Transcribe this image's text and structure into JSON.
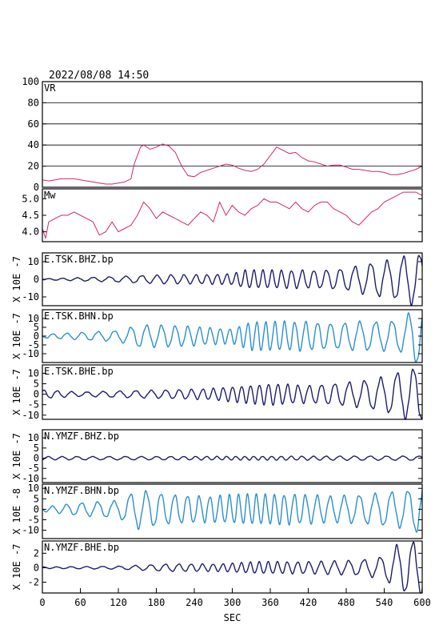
{
  "header": {
    "timestamp": "2022/08/08  14:50"
  },
  "chart_data": {
    "type": "line",
    "x_axis": {
      "label": "SEC",
      "ticks": [
        0,
        60,
        120,
        180,
        240,
        300,
        360,
        420,
        480,
        540,
        600
      ],
      "xlim": [
        0,
        600
      ]
    },
    "colors": {
      "vr": "#d6285a",
      "mw": "#d6285a",
      "dark": "#1c1c6e",
      "light": "#2a8fd0"
    },
    "panels": [
      {
        "id": "vr",
        "title": "VR",
        "ylim": [
          0,
          100
        ],
        "yticks": [
          "100",
          "80",
          "60",
          "40",
          "20",
          "0"
        ],
        "ytick_values": [
          100,
          80,
          60,
          40,
          20,
          0
        ],
        "grid": true,
        "color": "vr",
        "x": [
          0,
          10,
          20,
          30,
          40,
          50,
          60,
          70,
          80,
          90,
          100,
          110,
          120,
          130,
          140,
          145,
          150,
          155,
          160,
          170,
          180,
          190,
          200,
          210,
          220,
          230,
          240,
          250,
          260,
          270,
          280,
          290,
          300,
          310,
          320,
          330,
          340,
          350,
          360,
          370,
          380,
          390,
          400,
          410,
          420,
          430,
          440,
          450,
          460,
          470,
          480,
          490,
          500,
          510,
          520,
          530,
          540,
          550,
          560,
          570,
          580,
          590,
          600
        ],
        "y": [
          7,
          6,
          7,
          8,
          8,
          8,
          7,
          6,
          5,
          4,
          3,
          3,
          4,
          5,
          8,
          22,
          30,
          38,
          40,
          36,
          38,
          41,
          39,
          33,
          20,
          11,
          10,
          14,
          16,
          18,
          20,
          22,
          21,
          18,
          16,
          15,
          17,
          22,
          30,
          38,
          35,
          32,
          33,
          28,
          25,
          24,
          22,
          20,
          21,
          21,
          19,
          17,
          17,
          16,
          15,
          15,
          14,
          12,
          12,
          13,
          15,
          17,
          20
        ]
      },
      {
        "id": "mw",
        "title": "Mw",
        "ylim": [
          3.7,
          5.3
        ],
        "yticks": [
          "5.0",
          "4.5",
          "4.0"
        ],
        "ytick_values": [
          5.0,
          4.5,
          4.0
        ],
        "grid": false,
        "color": "mw",
        "x": [
          0,
          5,
          10,
          20,
          30,
          40,
          50,
          60,
          70,
          80,
          90,
          100,
          110,
          120,
          130,
          140,
          150,
          160,
          170,
          180,
          190,
          200,
          210,
          220,
          230,
          240,
          250,
          260,
          270,
          280,
          290,
          300,
          310,
          320,
          330,
          340,
          350,
          360,
          370,
          380,
          390,
          400,
          410,
          420,
          430,
          440,
          450,
          460,
          470,
          480,
          490,
          500,
          510,
          520,
          530,
          540,
          550,
          560,
          570,
          580,
          590,
          600
        ],
        "y": [
          4.1,
          3.8,
          4.3,
          4.4,
          4.5,
          4.5,
          4.6,
          4.5,
          4.4,
          4.3,
          3.9,
          4.0,
          4.3,
          4.0,
          4.1,
          4.2,
          4.5,
          4.9,
          4.7,
          4.4,
          4.6,
          4.5,
          4.4,
          4.3,
          4.2,
          4.4,
          4.6,
          4.5,
          4.3,
          4.9,
          4.5,
          4.8,
          4.6,
          4.5,
          4.7,
          4.8,
          5.0,
          4.9,
          4.9,
          4.8,
          4.7,
          4.9,
          4.7,
          4.6,
          4.8,
          4.9,
          4.9,
          4.7,
          4.6,
          4.5,
          4.3,
          4.2,
          4.4,
          4.6,
          4.7,
          4.9,
          5.0,
          5.1,
          5.2,
          5.2,
          5.2,
          5.1
        ]
      },
      {
        "id": "tsk-bhz",
        "title": "E.TSK.BHZ.bp",
        "ylabel": "X 10E -7",
        "ylim": [
          -15,
          15
        ],
        "yticks": [
          "10",
          "0",
          "-10"
        ],
        "ytick_values": [
          10,
          0,
          -10
        ],
        "color": "dark",
        "envelope": [
          [
            0,
            0.3
          ],
          [
            120,
            1.5
          ],
          [
            150,
            2
          ],
          [
            200,
            2.5
          ],
          [
            250,
            2.5
          ],
          [
            300,
            3
          ],
          [
            320,
            5
          ],
          [
            360,
            5
          ],
          [
            400,
            5
          ],
          [
            440,
            5
          ],
          [
            480,
            6
          ],
          [
            520,
            9
          ],
          [
            560,
            11
          ],
          [
            580,
            14
          ],
          [
            600,
            14
          ]
        ]
      },
      {
        "id": "tsk-bhn",
        "title": "E.TSK.BHN.bp",
        "ylabel": "X 10E -7",
        "ylim": [
          -15,
          15
        ],
        "yticks": [
          "10",
          "5",
          "0",
          "-5",
          "-10"
        ],
        "ytick_values": [
          10,
          5,
          0,
          -5,
          -10
        ],
        "color": "light",
        "envelope": [
          [
            0,
            1
          ],
          [
            60,
            2
          ],
          [
            120,
            3
          ],
          [
            150,
            6
          ],
          [
            200,
            6
          ],
          [
            250,
            5
          ],
          [
            300,
            4
          ],
          [
            330,
            8
          ],
          [
            360,
            8
          ],
          [
            420,
            8
          ],
          [
            460,
            7
          ],
          [
            500,
            8
          ],
          [
            540,
            8
          ],
          [
            570,
            9
          ],
          [
            585,
            15
          ],
          [
            600,
            15
          ]
        ]
      },
      {
        "id": "tsk-bhe",
        "title": "E.TSK.BHE.bp",
        "ylabel": "X 10E -7",
        "ylim": [
          -12,
          14
        ],
        "yticks": [
          "10",
          "5",
          "0",
          "-5",
          "-10"
        ],
        "ytick_values": [
          10,
          5,
          0,
          -5,
          -10
        ],
        "color": "dark",
        "envelope": [
          [
            0,
            2
          ],
          [
            60,
            1
          ],
          [
            120,
            1.5
          ],
          [
            200,
            2
          ],
          [
            260,
            2.5
          ],
          [
            320,
            4
          ],
          [
            360,
            5
          ],
          [
            420,
            4
          ],
          [
            460,
            5
          ],
          [
            500,
            6
          ],
          [
            540,
            8
          ],
          [
            570,
            11
          ],
          [
            585,
            12
          ],
          [
            600,
            12
          ]
        ]
      },
      {
        "id": "ymzf-bhz",
        "title": "N.YMZF.BHZ.bp",
        "ylabel": "X 10E -7",
        "ylim": [
          -12,
          14
        ],
        "yticks": [
          "10",
          "5",
          "0",
          "-5",
          "-10"
        ],
        "ytick_values": [
          10,
          5,
          0,
          -5,
          -10
        ],
        "color": "dark",
        "envelope": [
          [
            0,
            0.8
          ],
          [
            200,
            0.8
          ],
          [
            360,
            0.9
          ],
          [
            480,
            1
          ],
          [
            600,
            1
          ]
        ]
      },
      {
        "id": "ymzf-bhn",
        "title": "N.YMZF.BHN.bp",
        "ylabel": "X 10E -8",
        "ylim": [
          -14,
          12
        ],
        "yticks": [
          "10",
          "5",
          "0",
          "-5",
          "-10"
        ],
        "ytick_values": [
          10,
          5,
          0,
          -5,
          -10
        ],
        "color": "light",
        "envelope": [
          [
            0,
            1
          ],
          [
            60,
            3
          ],
          [
            120,
            4
          ],
          [
            150,
            9
          ],
          [
            200,
            7
          ],
          [
            260,
            6
          ],
          [
            320,
            7
          ],
          [
            400,
            7
          ],
          [
            460,
            6
          ],
          [
            520,
            7
          ],
          [
            580,
            9
          ],
          [
            600,
            12
          ]
        ]
      },
      {
        "id": "ymzf-bhe",
        "title": "N.YMZF.BHE.bp",
        "ylabel": "X 10E -7",
        "ylim": [
          -3.5,
          3.7
        ],
        "yticks": [
          "2",
          "0",
          "-2"
        ],
        "ytick_values": [
          2,
          0,
          -2
        ],
        "color": "dark",
        "envelope": [
          [
            0,
            0.1
          ],
          [
            120,
            0.2
          ],
          [
            200,
            0.5
          ],
          [
            280,
            0.5
          ],
          [
            340,
            0.8
          ],
          [
            420,
            0.8
          ],
          [
            500,
            1
          ],
          [
            540,
            1.5
          ],
          [
            560,
            3
          ],
          [
            580,
            3.5
          ],
          [
            600,
            3.5
          ]
        ]
      }
    ]
  }
}
